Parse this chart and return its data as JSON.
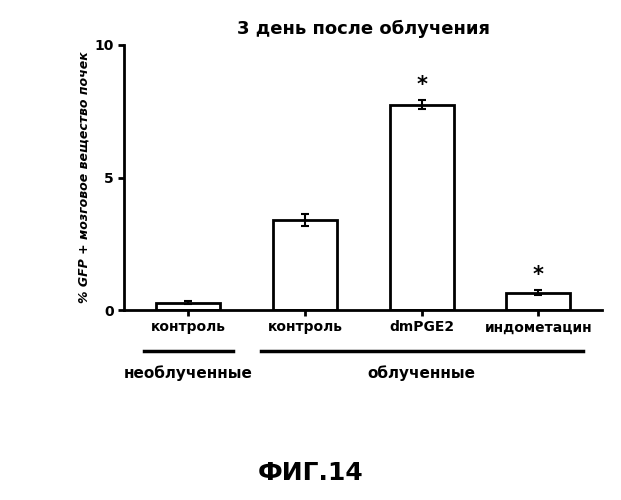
{
  "title": "3 день после облучения",
  "ylabel": "% GFP + мозговое вещество почек",
  "bar_labels": [
    "контроль",
    "контроль",
    "dmPGE2",
    "индометацин"
  ],
  "bar_values": [
    0.28,
    3.4,
    7.75,
    0.65
  ],
  "bar_errors": [
    0.05,
    0.22,
    0.18,
    0.09
  ],
  "ylim": [
    0,
    10
  ],
  "yticks": [
    0,
    5,
    10
  ],
  "bar_color": "white",
  "bar_edgecolor": "black",
  "bar_width": 0.55,
  "asterisk_bars": [
    2,
    3
  ],
  "group1_label": "необлученные",
  "group2_label": "облученные",
  "figure_caption": "ФИГ.14",
  "background_color": "white",
  "title_fontsize": 13,
  "ylabel_fontsize": 9,
  "tick_fontsize": 10,
  "group_label_fontsize": 11,
  "caption_fontsize": 18
}
